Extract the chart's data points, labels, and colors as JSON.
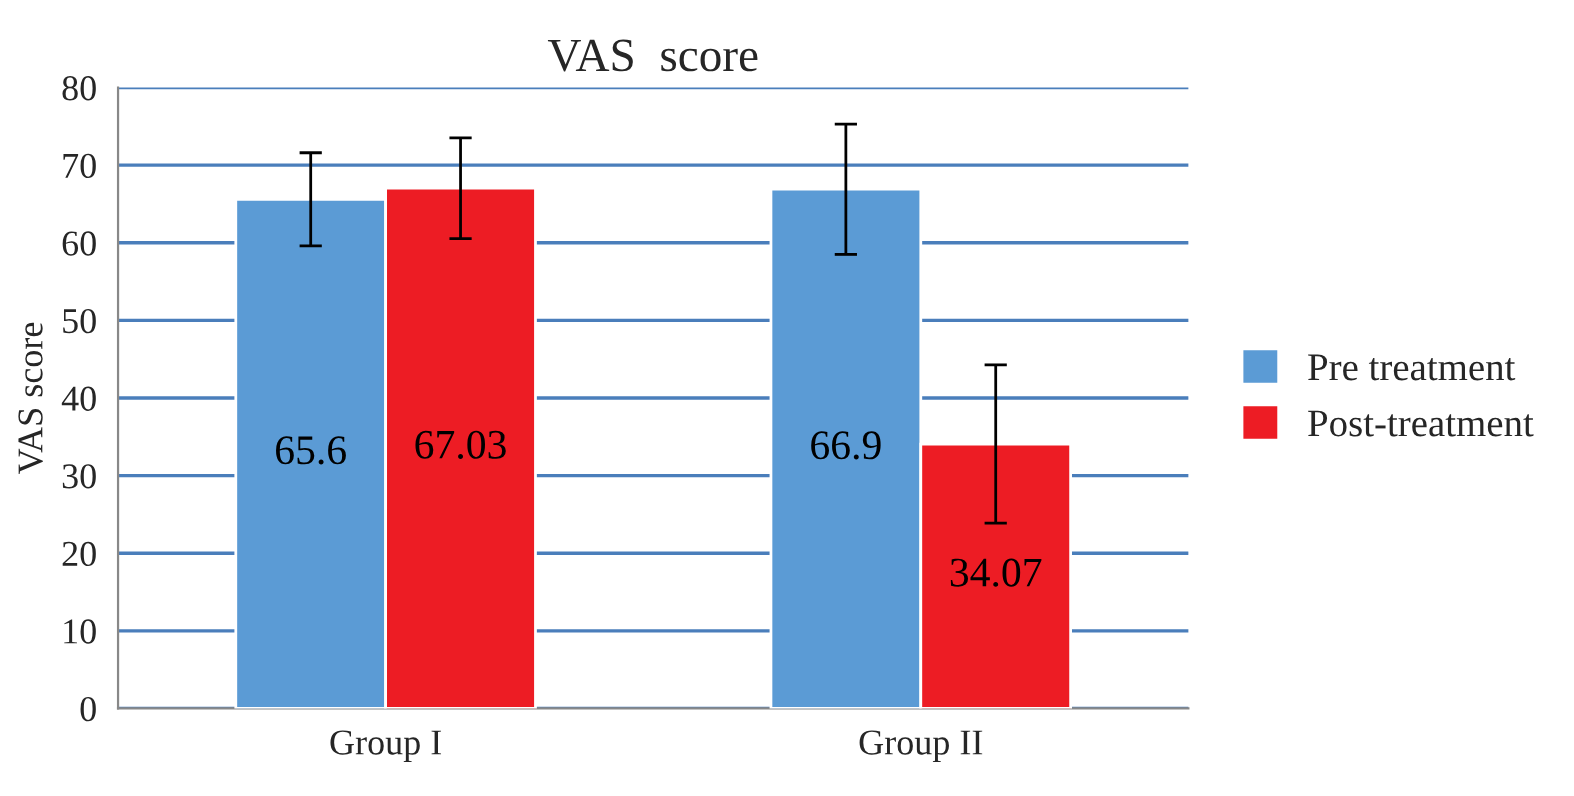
{
  "chart_data": {
    "type": "bar",
    "title": "VAS  score",
    "ylabel": "VAS score",
    "categories": [
      "Group I",
      "Group II"
    ],
    "series": [
      {
        "name": "Pre treatment",
        "color": "#5b9bd5",
        "values": [
          65.6,
          66.9
        ],
        "errors": [
          6,
          8.4
        ]
      },
      {
        "name": "Post-treatment",
        "color": "#ed1c24",
        "values": [
          67.03,
          34.07
        ],
        "errors": [
          6.5,
          10.2
        ]
      }
    ],
    "ylim": [
      0,
      80
    ],
    "yticks": [
      0,
      10,
      20,
      30,
      40,
      50,
      60,
      70,
      80
    ],
    "grid": "y",
    "legend": "right",
    "data_labels": true
  }
}
